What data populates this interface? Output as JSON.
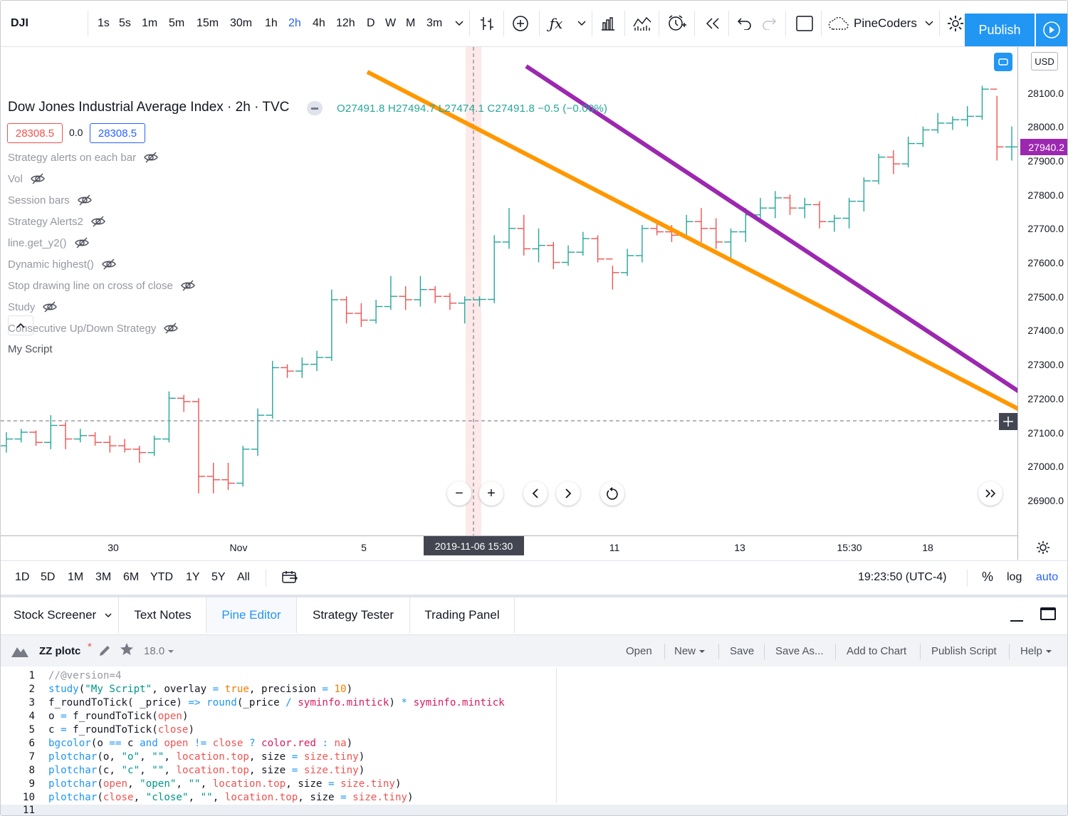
{
  "toolbar": {
    "symbol": "DJI",
    "intervals": [
      "1s",
      "5s",
      "1m",
      "5m",
      "15m",
      "30m",
      "1h",
      "2h",
      "4h",
      "12h",
      "D",
      "W",
      "M",
      "3m"
    ],
    "active_interval": "2h",
    "layout_name": "PineCoders",
    "publish_label": "Publish",
    "icons": [
      "chevron-down-icon",
      "bar-style-icon",
      "add-compare-icon",
      "indicators-icon",
      "chevron-down-icon",
      "financials-icon",
      "templates-icon",
      "alert-icon",
      "replay-icon",
      "undo-icon",
      "redo-icon",
      "fullscreen-icon",
      "cloud-icon",
      "settings-icon",
      "play-icon"
    ]
  },
  "chart": {
    "title": "Dow Jones Industrial Average Index · 2h · TVC",
    "ohlc": "O27491.8  H27494.7  L27474.1  C27491.8  −0.5 (−0.00%)",
    "bid": "28308.5",
    "spread": "0.0",
    "ask": "28308.5",
    "studies": [
      {
        "name": "Strategy alerts on each bar",
        "hidden": true
      },
      {
        "name": "Vol",
        "hidden": true
      },
      {
        "name": "Session bars",
        "hidden": true
      },
      {
        "name": "Strategy Alerts2",
        "hidden": true
      },
      {
        "name": "line.get_y2()",
        "hidden": true
      },
      {
        "name": "Dynamic highest()",
        "hidden": true
      },
      {
        "name": "Stop drawing line on cross of close",
        "hidden": true
      },
      {
        "name": "Study",
        "hidden": true
      },
      {
        "name": "Consecutive Up/Down Strategy",
        "hidden": true
      },
      {
        "name": "My Script",
        "hidden": false
      }
    ],
    "price_ticks": [
      "28100.0",
      "28000.0",
      "27900.0",
      "27800.0",
      "27700.0",
      "27600.0",
      "27500.0",
      "27400.0",
      "27300.0",
      "27200.0",
      "27100.0",
      "27000.0",
      "26900.0"
    ],
    "current_price_label": "27940.2",
    "currency": "USD",
    "time_ticks": [
      "30",
      "Nov",
      "5",
      "11",
      "13",
      "15:30",
      "18"
    ],
    "crosshair_time": "2019-11-06   15:30",
    "up_color": "#26a69a",
    "down_color": "#ef5350",
    "trendline_colors": [
      "#ff9800",
      "#9c27b0"
    ]
  },
  "rangebar": {
    "ranges": [
      "1D",
      "5D",
      "1M",
      "3M",
      "6M",
      "YTD",
      "1Y",
      "5Y",
      "All"
    ],
    "clock": "19:23:50 (UTC-4)",
    "percent": "%",
    "log": "log",
    "auto": "auto"
  },
  "bottom_tabs": [
    "Stock Screener",
    "Text Notes",
    "Pine Editor",
    "Strategy Tester",
    "Trading Panel"
  ],
  "active_tab": "Pine Editor",
  "editor": {
    "script_name": "ZZ plotc",
    "modified_marker": "*",
    "version": "18.0",
    "actions": [
      "Open",
      "New",
      "Save",
      "Save As...",
      "Add to Chart",
      "Publish Script",
      "Help"
    ],
    "line_numbers": [
      "1",
      "2",
      "3",
      "4",
      "5",
      "6",
      "7",
      "8",
      "9",
      "10",
      "11"
    ]
  }
}
